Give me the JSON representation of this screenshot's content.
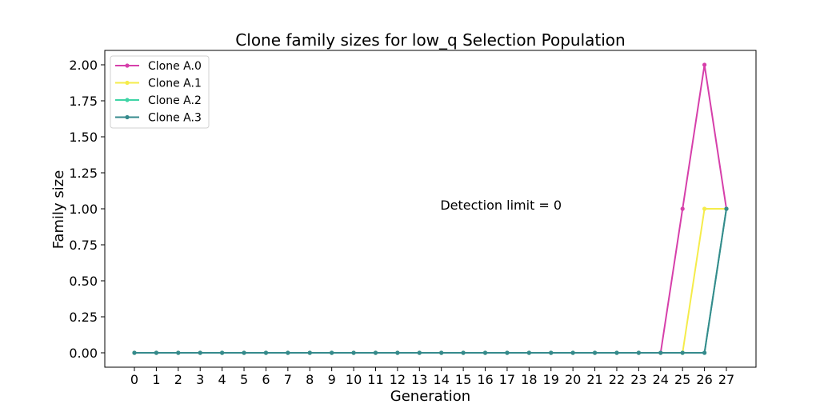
{
  "chart_data": {
    "type": "line",
    "title": "Clone family sizes for low_q Selection Population",
    "xlabel": "Generation",
    "ylabel": "Family size",
    "annotation": "Detection limit = 0",
    "x": [
      0,
      1,
      2,
      3,
      4,
      5,
      6,
      7,
      8,
      9,
      10,
      11,
      12,
      13,
      14,
      15,
      16,
      17,
      18,
      19,
      20,
      21,
      22,
      23,
      24,
      25,
      26,
      27
    ],
    "x_tick_labels": [
      "0",
      "1",
      "2",
      "3",
      "4",
      "5",
      "6",
      "7",
      "8",
      "9",
      "10",
      "11",
      "12",
      "13",
      "14",
      "15",
      "16",
      "17",
      "18",
      "19",
      "20",
      "21",
      "22",
      "23",
      "24",
      "25",
      "26",
      "27"
    ],
    "xlim": [
      -1.35,
      28.35
    ],
    "ylim": [
      -0.1,
      2.1
    ],
    "y_ticks": [
      0.0,
      0.25,
      0.5,
      0.75,
      1.0,
      1.25,
      1.5,
      1.75,
      2.0
    ],
    "y_tick_labels": [
      "0.00",
      "0.25",
      "0.50",
      "0.75",
      "1.00",
      "1.25",
      "1.50",
      "1.75",
      "2.00"
    ],
    "grid": false,
    "legend_position": "top-left",
    "series": [
      {
        "name": "Clone A.0",
        "color": "#d63faa",
        "values": [
          0,
          0,
          0,
          0,
          0,
          0,
          0,
          0,
          0,
          0,
          0,
          0,
          0,
          0,
          0,
          0,
          0,
          0,
          0,
          0,
          0,
          0,
          0,
          0,
          0,
          1,
          2,
          1
        ]
      },
      {
        "name": "Clone A.1",
        "color": "#f5ec4a",
        "values": [
          0,
          0,
          0,
          0,
          0,
          0,
          0,
          0,
          0,
          0,
          0,
          0,
          0,
          0,
          0,
          0,
          0,
          0,
          0,
          0,
          0,
          0,
          0,
          0,
          0,
          0,
          1,
          1
        ]
      },
      {
        "name": "Clone A.2",
        "color": "#3fd4a6",
        "values": [
          0,
          0,
          0,
          0,
          0,
          0,
          0,
          0,
          0,
          0,
          0,
          0,
          0,
          0,
          0,
          0,
          0,
          0,
          0,
          0,
          0,
          0,
          0,
          0,
          0,
          0,
          0,
          1
        ]
      },
      {
        "name": "Clone A.3",
        "color": "#358a8c",
        "values": [
          0,
          0,
          0,
          0,
          0,
          0,
          0,
          0,
          0,
          0,
          0,
          0,
          0,
          0,
          0,
          0,
          0,
          0,
          0,
          0,
          0,
          0,
          0,
          0,
          0,
          0,
          0,
          1
        ]
      }
    ]
  }
}
